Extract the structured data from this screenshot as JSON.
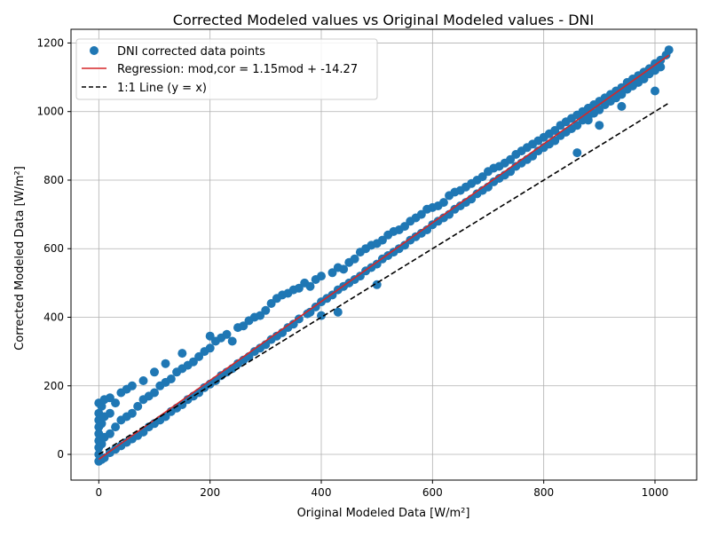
{
  "chart_data": {
    "type": "scatter",
    "title": "Corrected Modeled values vs Original Modeled values - DNI",
    "xlabel": "Original Modeled Data [W/m²]",
    "ylabel": "Corrected Modeled Data [W/m²]",
    "xlim": [
      -50,
      1075
    ],
    "ylim": [
      -75,
      1240
    ],
    "xticks": [
      0,
      200,
      400,
      600,
      800,
      1000
    ],
    "yticks": [
      0,
      200,
      400,
      600,
      800,
      1000,
      1200
    ],
    "grid": true,
    "legend_position": "top-left",
    "colors": {
      "points": "#1f77b4",
      "regression": "#d62728",
      "identity": "#000000"
    },
    "series": [
      {
        "name": "DNI corrected data points",
        "kind": "scatter",
        "points": [
          [
            0,
            -20
          ],
          [
            0,
            0
          ],
          [
            0,
            20
          ],
          [
            0,
            40
          ],
          [
            0,
            60
          ],
          [
            0,
            80
          ],
          [
            0,
            100
          ],
          [
            0,
            120
          ],
          [
            0,
            150
          ],
          [
            5,
            -15
          ],
          [
            5,
            30
          ],
          [
            5,
            90
          ],
          [
            5,
            140
          ],
          [
            10,
            -10
          ],
          [
            10,
            50
          ],
          [
            10,
            110
          ],
          [
            10,
            160
          ],
          [
            20,
            5
          ],
          [
            20,
            60
          ],
          [
            20,
            120
          ],
          [
            20,
            165
          ],
          [
            30,
            15
          ],
          [
            30,
            80
          ],
          [
            30,
            150
          ],
          [
            40,
            25
          ],
          [
            40,
            100
          ],
          [
            40,
            180
          ],
          [
            50,
            35
          ],
          [
            50,
            110
          ],
          [
            50,
            190
          ],
          [
            60,
            45
          ],
          [
            60,
            120
          ],
          [
            60,
            200
          ],
          [
            70,
            55
          ],
          [
            70,
            140
          ],
          [
            80,
            65
          ],
          [
            80,
            160
          ],
          [
            80,
            215
          ],
          [
            90,
            80
          ],
          [
            90,
            170
          ],
          [
            100,
            90
          ],
          [
            100,
            180
          ],
          [
            100,
            240
          ],
          [
            110,
            100
          ],
          [
            110,
            200
          ],
          [
            120,
            110
          ],
          [
            120,
            210
          ],
          [
            120,
            265
          ],
          [
            130,
            125
          ],
          [
            130,
            220
          ],
          [
            140,
            135
          ],
          [
            140,
            240
          ],
          [
            150,
            145
          ],
          [
            150,
            250
          ],
          [
            150,
            295
          ],
          [
            160,
            160
          ],
          [
            160,
            260
          ],
          [
            170,
            170
          ],
          [
            170,
            270
          ],
          [
            180,
            180
          ],
          [
            180,
            285
          ],
          [
            190,
            195
          ],
          [
            190,
            300
          ],
          [
            200,
            205
          ],
          [
            200,
            310
          ],
          [
            200,
            345
          ],
          [
            210,
            215
          ],
          [
            210,
            330
          ],
          [
            220,
            230
          ],
          [
            220,
            340
          ],
          [
            230,
            240
          ],
          [
            230,
            350
          ],
          [
            240,
            250
          ],
          [
            240,
            330
          ],
          [
            250,
            265
          ],
          [
            250,
            370
          ],
          [
            260,
            275
          ],
          [
            260,
            375
          ],
          [
            270,
            285
          ],
          [
            270,
            390
          ],
          [
            280,
            300
          ],
          [
            280,
            400
          ],
          [
            290,
            310
          ],
          [
            290,
            405
          ],
          [
            300,
            320
          ],
          [
            300,
            420
          ],
          [
            310,
            335
          ],
          [
            310,
            440
          ],
          [
            320,
            345
          ],
          [
            320,
            455
          ],
          [
            330,
            355
          ],
          [
            330,
            465
          ],
          [
            340,
            370
          ],
          [
            340,
            470
          ],
          [
            350,
            380
          ],
          [
            350,
            480
          ],
          [
            360,
            395
          ],
          [
            360,
            485
          ],
          [
            370,
            500
          ],
          [
            375,
            410
          ],
          [
            380,
            415
          ],
          [
            380,
            490
          ],
          [
            390,
            430
          ],
          [
            390,
            510
          ],
          [
            400,
            405
          ],
          [
            400,
            445
          ],
          [
            400,
            520
          ],
          [
            410,
            455
          ],
          [
            420,
            465
          ],
          [
            420,
            530
          ],
          [
            430,
            415
          ],
          [
            430,
            480
          ],
          [
            430,
            545
          ],
          [
            440,
            490
          ],
          [
            440,
            540
          ],
          [
            450,
            500
          ],
          [
            450,
            560
          ],
          [
            460,
            510
          ],
          [
            460,
            570
          ],
          [
            470,
            520
          ],
          [
            470,
            590
          ],
          [
            480,
            535
          ],
          [
            480,
            600
          ],
          [
            490,
            545
          ],
          [
            490,
            610
          ],
          [
            500,
            495
          ],
          [
            500,
            555
          ],
          [
            500,
            615
          ],
          [
            510,
            570
          ],
          [
            510,
            625
          ],
          [
            520,
            580
          ],
          [
            520,
            640
          ],
          [
            530,
            590
          ],
          [
            530,
            650
          ],
          [
            540,
            600
          ],
          [
            540,
            655
          ],
          [
            550,
            610
          ],
          [
            550,
            665
          ],
          [
            560,
            625
          ],
          [
            560,
            680
          ],
          [
            570,
            635
          ],
          [
            570,
            690
          ],
          [
            580,
            645
          ],
          [
            580,
            700
          ],
          [
            590,
            655
          ],
          [
            590,
            715
          ],
          [
            600,
            670
          ],
          [
            600,
            720
          ],
          [
            610,
            680
          ],
          [
            610,
            725
          ],
          [
            620,
            690
          ],
          [
            620,
            735
          ],
          [
            630,
            700
          ],
          [
            630,
            755
          ],
          [
            640,
            715
          ],
          [
            640,
            765
          ],
          [
            650,
            725
          ],
          [
            650,
            770
          ],
          [
            660,
            735
          ],
          [
            660,
            780
          ],
          [
            670,
            745
          ],
          [
            670,
            790
          ],
          [
            680,
            760
          ],
          [
            680,
            800
          ],
          [
            690,
            770
          ],
          [
            690,
            810
          ],
          [
            700,
            780
          ],
          [
            700,
            825
          ],
          [
            710,
            795
          ],
          [
            710,
            835
          ],
          [
            720,
            805
          ],
          [
            720,
            840
          ],
          [
            730,
            815
          ],
          [
            730,
            850
          ],
          [
            740,
            825
          ],
          [
            740,
            860
          ],
          [
            750,
            840
          ],
          [
            750,
            875
          ],
          [
            760,
            850
          ],
          [
            760,
            885
          ],
          [
            770,
            860
          ],
          [
            770,
            895
          ],
          [
            780,
            870
          ],
          [
            780,
            905
          ],
          [
            790,
            885
          ],
          [
            790,
            915
          ],
          [
            800,
            895
          ],
          [
            800,
            925
          ],
          [
            810,
            905
          ],
          [
            810,
            935
          ],
          [
            820,
            915
          ],
          [
            820,
            945
          ],
          [
            830,
            930
          ],
          [
            830,
            960
          ],
          [
            840,
            940
          ],
          [
            840,
            970
          ],
          [
            850,
            950
          ],
          [
            850,
            980
          ],
          [
            860,
            960
          ],
          [
            860,
            990
          ],
          [
            870,
            975
          ],
          [
            870,
            1000
          ],
          [
            880,
            985
          ],
          [
            880,
            1010
          ],
          [
            890,
            995
          ],
          [
            890,
            1020
          ],
          [
            900,
            1005
          ],
          [
            900,
            1030
          ],
          [
            910,
            1020
          ],
          [
            910,
            1040
          ],
          [
            920,
            1030
          ],
          [
            920,
            1050
          ],
          [
            930,
            1040
          ],
          [
            930,
            1060
          ],
          [
            940,
            1050
          ],
          [
            940,
            1070
          ],
          [
            950,
            1065
          ],
          [
            950,
            1085
          ],
          [
            960,
            1075
          ],
          [
            960,
            1095
          ],
          [
            970,
            1085
          ],
          [
            970,
            1105
          ],
          [
            980,
            1095
          ],
          [
            980,
            1115
          ],
          [
            990,
            1110
          ],
          [
            990,
            1125
          ],
          [
            1000,
            1120
          ],
          [
            1000,
            1140
          ],
          [
            1010,
            1130
          ],
          [
            1010,
            1150
          ],
          [
            1020,
            1165
          ],
          [
            1025,
            1180
          ],
          [
            1000,
            1060
          ],
          [
            960,
            1075
          ],
          [
            940,
            1015
          ],
          [
            900,
            960
          ],
          [
            880,
            975
          ],
          [
            860,
            880
          ]
        ]
      },
      {
        "name": "Regression: mod,cor = 1.15mod + -14.27",
        "kind": "line",
        "slope": 1.15,
        "intercept": -14.27,
        "x": [
          0,
          1025
        ]
      },
      {
        "name": "1:1 Line (y = x)",
        "kind": "line",
        "slope": 1,
        "intercept": 0,
        "x": [
          0,
          1025
        ]
      }
    ]
  }
}
